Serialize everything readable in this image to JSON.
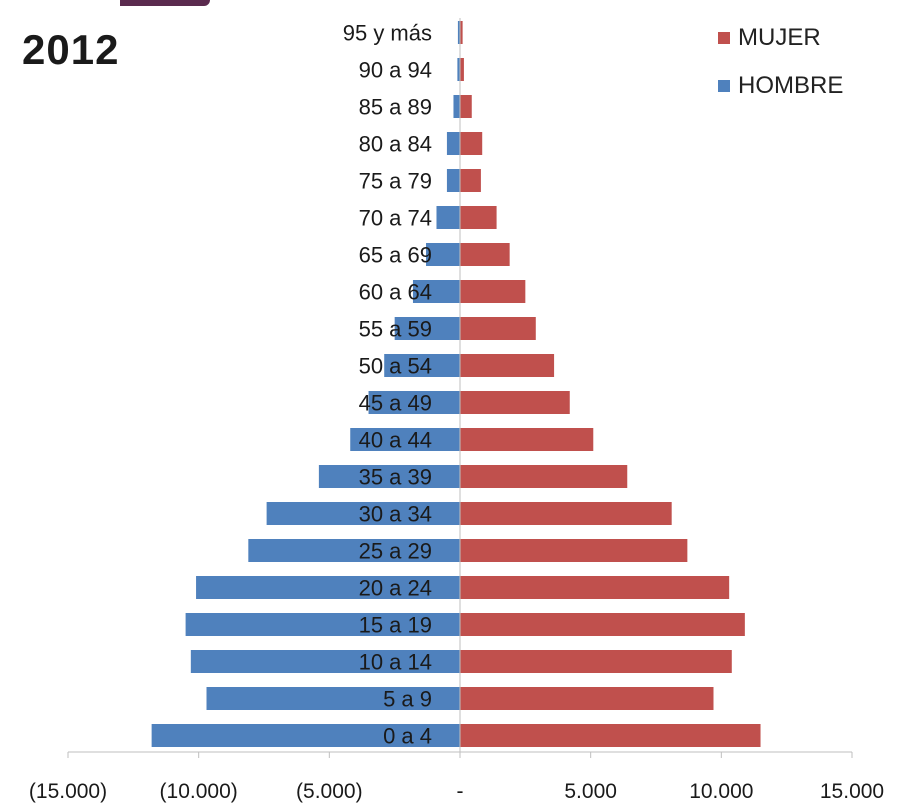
{
  "chart_data": {
    "type": "bar",
    "orientation": "horizontal",
    "title": "2012",
    "categories": [
      "0 a 4",
      "5 a 9",
      "10 a 14",
      "15 a 19",
      "20 a 24",
      "25 a 29",
      "30 a 34",
      "35 a 39",
      "40 a 44",
      "45 a 49",
      "50 a 54",
      "55 a 59",
      "60 a 64",
      "65 a 69",
      "70 a 74",
      "75 a 79",
      "80 a 84",
      "85 a 89",
      "90 a 94",
      "95 y más"
    ],
    "series": [
      {
        "name": "MUJER",
        "color": "#c0504d",
        "values": [
          11500,
          9700,
          10400,
          10900,
          10300,
          8700,
          8100,
          6400,
          5100,
          4200,
          3600,
          2900,
          2500,
          1900,
          1400,
          800,
          850,
          450,
          150,
          100
        ]
      },
      {
        "name": "HOMBRE",
        "color": "#4f81bd",
        "values": [
          -11800,
          -9700,
          -10300,
          -10500,
          -10100,
          -8100,
          -7400,
          -5400,
          -4200,
          -3500,
          -2900,
          -2500,
          -1800,
          -1300,
          -900,
          -500,
          -500,
          -250,
          -100,
          -80
        ]
      }
    ],
    "legend": [
      "MUJER",
      "HOMBRE"
    ],
    "legend_position": "top-right",
    "xlim": [
      -15000,
      15000
    ],
    "x_ticks": [
      -15000,
      -10000,
      -5000,
      0,
      5000,
      10000,
      15000
    ],
    "x_tick_labels": [
      "(15.000)",
      "(10.000)",
      "(5.000)",
      "-",
      "5.000",
      "10.000",
      "15.000"
    ],
    "xlabel": "",
    "ylabel": "",
    "grid": false
  }
}
